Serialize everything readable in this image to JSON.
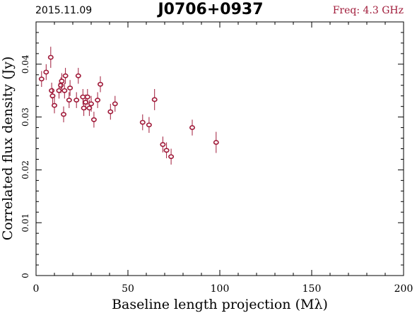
{
  "header": {
    "date": "2015.11.09",
    "source": "J0706+0937",
    "freq": "Freq: 4.3 GHz"
  },
  "chart_data": {
    "type": "scatter",
    "title": "J0706+0937",
    "xlabel": "Baseline length projection (Mλ)",
    "ylabel": "Correlated flux density (Jy)",
    "xlim": [
      0,
      200
    ],
    "ylim": [
      0,
      0.048
    ],
    "xticks": [
      0,
      50,
      100,
      150,
      200
    ],
    "xtick_labels": [
      "0",
      "50",
      "100",
      "150",
      "200"
    ],
    "yticks": [
      0,
      0.01,
      0.02,
      0.03,
      0.04
    ],
    "ytick_labels": [
      "0",
      "0.01",
      "0.02",
      "0.03",
      "0.04"
    ],
    "grid": false,
    "marker_color": "#a01b3a",
    "points": [
      {
        "x": 3.0,
        "y": 0.0372,
        "err": 0.0015
      },
      {
        "x": 5.5,
        "y": 0.0385,
        "err": 0.0015
      },
      {
        "x": 8.0,
        "y": 0.0413,
        "err": 0.002
      },
      {
        "x": 8.5,
        "y": 0.035,
        "err": 0.0015
      },
      {
        "x": 9.0,
        "y": 0.034,
        "err": 0.0015
      },
      {
        "x": 10.0,
        "y": 0.0322,
        "err": 0.0015
      },
      {
        "x": 12.5,
        "y": 0.035,
        "err": 0.0015
      },
      {
        "x": 13.5,
        "y": 0.036,
        "err": 0.0015
      },
      {
        "x": 14.0,
        "y": 0.0368,
        "err": 0.0015
      },
      {
        "x": 15.0,
        "y": 0.0305,
        "err": 0.0015
      },
      {
        "x": 15.5,
        "y": 0.035,
        "err": 0.0015
      },
      {
        "x": 16.0,
        "y": 0.0378,
        "err": 0.0015
      },
      {
        "x": 18.0,
        "y": 0.0332,
        "err": 0.0015
      },
      {
        "x": 18.5,
        "y": 0.0355,
        "err": 0.0015
      },
      {
        "x": 22.0,
        "y": 0.0332,
        "err": 0.0015
      },
      {
        "x": 23.0,
        "y": 0.0378,
        "err": 0.0015
      },
      {
        "x": 25.5,
        "y": 0.0338,
        "err": 0.0015
      },
      {
        "x": 26.0,
        "y": 0.0317,
        "err": 0.0015
      },
      {
        "x": 27.0,
        "y": 0.0328,
        "err": 0.0015
      },
      {
        "x": 28.0,
        "y": 0.0338,
        "err": 0.0015
      },
      {
        "x": 29.0,
        "y": 0.0317,
        "err": 0.0015
      },
      {
        "x": 30.0,
        "y": 0.0325,
        "err": 0.0015
      },
      {
        "x": 31.5,
        "y": 0.0295,
        "err": 0.0015
      },
      {
        "x": 33.5,
        "y": 0.0332,
        "err": 0.0015
      },
      {
        "x": 35.0,
        "y": 0.0362,
        "err": 0.0015
      },
      {
        "x": 40.5,
        "y": 0.031,
        "err": 0.0015
      },
      {
        "x": 43.0,
        "y": 0.0325,
        "err": 0.0015
      },
      {
        "x": 58.0,
        "y": 0.029,
        "err": 0.0015
      },
      {
        "x": 61.5,
        "y": 0.0285,
        "err": 0.0015
      },
      {
        "x": 64.5,
        "y": 0.0333,
        "err": 0.002
      },
      {
        "x": 69.0,
        "y": 0.0248,
        "err": 0.0015
      },
      {
        "x": 71.0,
        "y": 0.0237,
        "err": 0.0015
      },
      {
        "x": 73.5,
        "y": 0.0225,
        "err": 0.0015
      },
      {
        "x": 85.0,
        "y": 0.028,
        "err": 0.0015
      },
      {
        "x": 98.0,
        "y": 0.0252,
        "err": 0.002
      }
    ]
  }
}
